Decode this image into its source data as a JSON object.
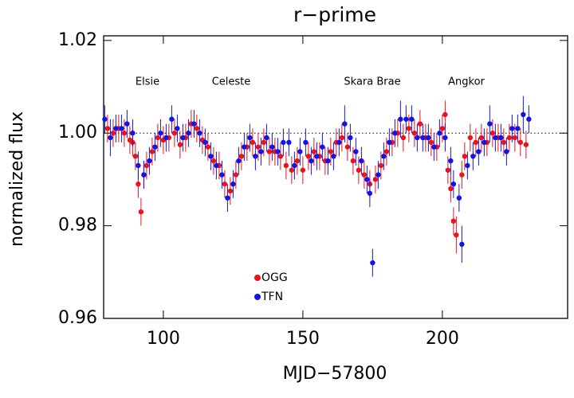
{
  "chart_data": {
    "type": "scatter",
    "title": "r−prime",
    "xlabel": "MJD−57800",
    "ylabel": "normalized flux",
    "xlim": [
      78.6,
      244.9
    ],
    "ylim": [
      0.96,
      1.021
    ],
    "xticks": [
      100,
      150,
      200
    ],
    "yticks": [
      0.96,
      0.98,
      {
        "value": 1,
        "label": "1.00"
      },
      1.02
    ],
    "reference_line": 1,
    "annotations": [
      "Elsie",
      "Celeste",
      "Skara Brae",
      "Angkor"
    ],
    "series": [
      {
        "name": "OGG",
        "color": "#e8141c",
        "x": [
          80,
          82,
          84,
          86,
          88,
          89,
          90,
          91,
          92,
          93,
          94,
          96,
          98,
          100,
          102,
          104,
          106,
          108,
          110,
          112,
          114,
          116,
          118,
          120,
          122,
          124,
          126,
          128,
          130,
          132,
          134,
          136,
          138,
          140,
          142,
          144,
          146,
          148,
          150,
          152,
          154,
          156,
          158,
          160,
          162,
          164,
          166,
          168,
          170,
          172,
          174,
          176,
          178,
          180,
          182,
          184,
          186,
          188,
          190,
          192,
          194,
          196,
          198,
          200,
          201,
          202,
          203,
          204,
          205,
          207,
          208,
          210,
          212,
          214,
          216,
          218,
          220,
          222,
          224,
          226,
          228,
          230
        ],
        "values": [
          1.001,
          1.0,
          1.001,
          1.0,
          0.9985,
          0.998,
          0.995,
          0.989,
          0.983,
          0.991,
          0.993,
          0.996,
          0.999,
          0.9985,
          0.999,
          1.0,
          0.9975,
          0.999,
          1.002,
          1.001,
          0.9985,
          0.997,
          0.994,
          0.993,
          0.989,
          0.9875,
          0.991,
          0.995,
          0.997,
          0.998,
          0.997,
          0.998,
          0.996,
          0.996,
          0.995,
          0.993,
          0.992,
          0.994,
          0.992,
          0.995,
          0.996,
          0.995,
          0.994,
          0.996,
          0.998,
          0.999,
          0.997,
          0.994,
          0.992,
          0.991,
          0.989,
          0.99,
          0.993,
          0.996,
          0.998,
          1.0,
          0.999,
          1.001,
          1.0,
          1.002,
          0.999,
          0.998,
          0.997,
          1.001,
          1.004,
          0.992,
          0.988,
          0.981,
          0.978,
          0.991,
          0.995,
          0.999,
          0.998,
          0.999,
          0.998,
          1.0,
          0.999,
          0.998,
          0.999,
          0.999,
          0.998,
          0.9975
        ],
        "errors": [
          0.003,
          0.003,
          0.003,
          0.003,
          0.003,
          0.003,
          0.003,
          0.003,
          0.003,
          0.003,
          0.003,
          0.003,
          0.003,
          0.003,
          0.003,
          0.003,
          0.003,
          0.003,
          0.003,
          0.003,
          0.003,
          0.003,
          0.003,
          0.003,
          0.003,
          0.003,
          0.003,
          0.003,
          0.003,
          0.003,
          0.003,
          0.003,
          0.003,
          0.003,
          0.003,
          0.003,
          0.003,
          0.003,
          0.003,
          0.003,
          0.003,
          0.003,
          0.003,
          0.003,
          0.003,
          0.003,
          0.003,
          0.003,
          0.003,
          0.003,
          0.003,
          0.003,
          0.003,
          0.003,
          0.003,
          0.003,
          0.003,
          0.003,
          0.003,
          0.003,
          0.003,
          0.003,
          0.003,
          0.003,
          0.003,
          0.003,
          0.003,
          0.003,
          0.004,
          0.003,
          0.003,
          0.003,
          0.003,
          0.003,
          0.003,
          0.003,
          0.003,
          0.003,
          0.003,
          0.003,
          0.003,
          0.003
        ]
      },
      {
        "name": "TFN",
        "color": "#1414e0",
        "x": [
          79,
          81,
          83,
          85,
          87,
          89,
          91,
          93,
          95,
          97,
          99,
          101,
          103,
          105,
          107,
          109,
          111,
          113,
          115,
          117,
          119,
          121,
          123,
          125,
          127,
          129,
          131,
          133,
          135,
          137,
          139,
          141,
          143,
          145,
          147,
          149,
          151,
          153,
          155,
          157,
          159,
          161,
          163,
          165,
          167,
          169,
          171,
          173,
          174,
          175,
          177,
          179,
          181,
          183,
          185,
          187,
          189,
          191,
          193,
          195,
          197,
          199,
          201,
          203,
          204,
          206,
          207,
          209,
          211,
          213,
          215,
          217,
          219,
          221,
          223,
          225,
          227,
          229,
          231
        ],
        "values": [
          1.003,
          0.999,
          1.001,
          1.001,
          1.002,
          1.0,
          0.993,
          0.991,
          0.994,
          0.997,
          1.0,
          0.999,
          1.003,
          1.001,
          0.999,
          1.0,
          1.002,
          1.0,
          0.998,
          0.995,
          0.993,
          0.991,
          0.986,
          0.989,
          0.994,
          0.997,
          0.999,
          0.995,
          0.996,
          0.999,
          0.997,
          0.996,
          0.998,
          0.998,
          0.993,
          0.996,
          0.998,
          0.994,
          0.995,
          0.997,
          0.994,
          0.995,
          0.998,
          1.002,
          0.999,
          0.996,
          0.994,
          0.99,
          0.987,
          0.972,
          0.991,
          0.995,
          0.998,
          1.0,
          1.003,
          1.003,
          1.003,
          0.999,
          0.999,
          0.999,
          0.997,
          1.0,
          0.999,
          0.994,
          0.989,
          0.986,
          0.976,
          0.993,
          0.995,
          0.996,
          0.998,
          1.002,
          0.999,
          0.999,
          0.996,
          1.001,
          1.001,
          1.004,
          1.003
        ],
        "errors": [
          0.003,
          0.004,
          0.003,
          0.003,
          0.003,
          0.003,
          0.003,
          0.003,
          0.003,
          0.003,
          0.003,
          0.003,
          0.003,
          0.003,
          0.003,
          0.003,
          0.003,
          0.003,
          0.003,
          0.003,
          0.003,
          0.003,
          0.003,
          0.003,
          0.003,
          0.003,
          0.003,
          0.003,
          0.003,
          0.003,
          0.003,
          0.003,
          0.003,
          0.003,
          0.003,
          0.003,
          0.003,
          0.003,
          0.003,
          0.003,
          0.003,
          0.003,
          0.003,
          0.004,
          0.003,
          0.003,
          0.003,
          0.003,
          0.003,
          0.003,
          0.003,
          0.003,
          0.003,
          0.003,
          0.004,
          0.003,
          0.003,
          0.003,
          0.003,
          0.003,
          0.003,
          0.003,
          0.003,
          0.003,
          0.003,
          0.003,
          0.004,
          0.003,
          0.003,
          0.003,
          0.003,
          0.004,
          0.003,
          0.003,
          0.003,
          0.003,
          0.003,
          0.004,
          0.003
        ]
      }
    ]
  }
}
